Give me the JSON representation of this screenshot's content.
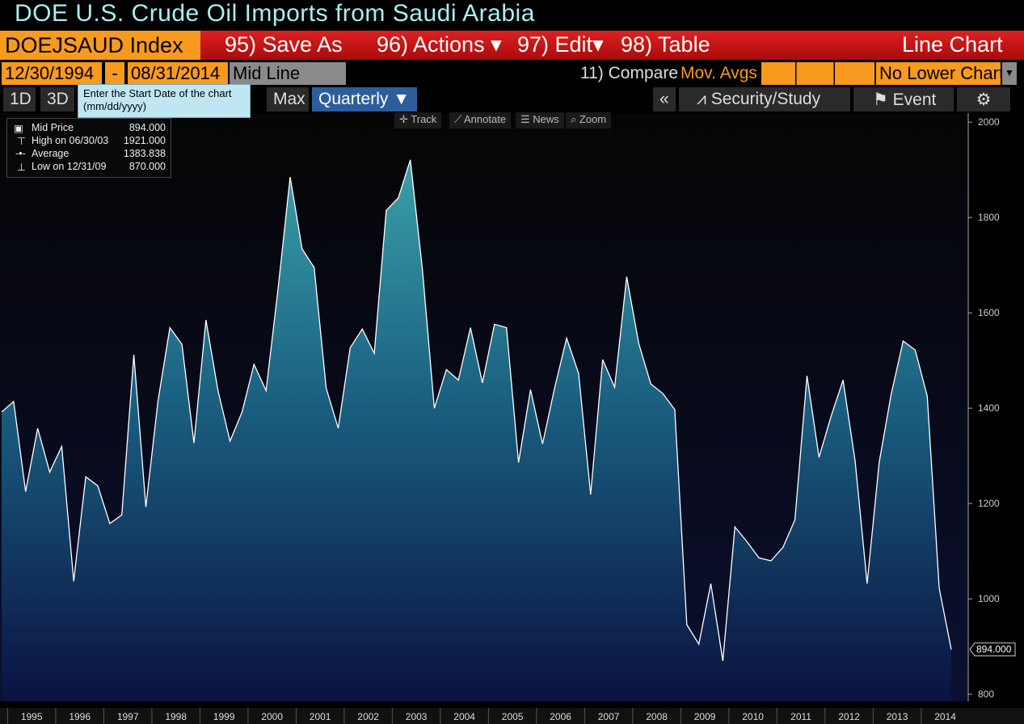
{
  "header": {
    "title": "DOE U.S. Crude Oil Imports from Saudi Arabia"
  },
  "toolbar": {
    "ticker": "DOEJSAUD Index",
    "menu": [
      "95) Save As",
      "96) Actions",
      "97) Edit",
      "98) Table"
    ],
    "chart_type": "Line Chart"
  },
  "controls": {
    "start_date": "12/30/1994",
    "separator": "-",
    "end_date": "08/31/2014",
    "line_mode": "Mid Line",
    "compare": "11) Compare",
    "mov_avgs": "Mov. Avgs",
    "lower_chart": "No Lower Chart"
  },
  "periods": [
    "1D",
    "3D",
    "Max"
  ],
  "frequency": "Quarterly",
  "tooltip": {
    "text": "Enter the Start Date of the chart",
    "hint": "(mm/dd/yyyy)"
  },
  "right_tools": [
    "Security/Study",
    "Event"
  ],
  "chart_tools": [
    "Track",
    "Annotate",
    "News",
    "Zoom"
  ],
  "legend": [
    {
      "value": "894.000"
    },
    {
      "label": "High on 06/30/03",
      "value": "1921.000"
    },
    {
      "label": "Average",
      "value": "1383.838"
    },
    {
      "label": "Low on 12/31/09",
      "value": "870.000"
    }
  ],
  "chart_data": {
    "type": "area",
    "series": [
      {
        "name": "Mid Price",
        "color": "#ffffff",
        "values": [
          1392,
          1414,
          1225,
          1358,
          1266,
          1320,
          1037,
          1256,
          1237,
          1158,
          1176,
          1512,
          1193,
          1414,
          1569,
          1534,
          1327,
          1585,
          1437,
          1331,
          1392,
          1492,
          1437,
          1651,
          1885,
          1734,
          1695,
          1442,
          1358,
          1527,
          1566,
          1515,
          1815,
          1841,
          1921,
          1692,
          1400,
          1481,
          1459,
          1569,
          1453,
          1576,
          1569,
          1286,
          1439,
          1325,
          1442,
          1547,
          1473,
          1219,
          1502,
          1444,
          1676,
          1536,
          1451,
          1431,
          1397,
          946,
          905,
          1032,
          870,
          1151,
          1120,
          1086,
          1080,
          1108,
          1166,
          1468,
          1297,
          1383,
          1459,
          1290,
          1032,
          1286,
          1429,
          1541,
          1522,
          1425,
          1022,
          894
        ]
      }
    ],
    "ylim": [
      785,
      2019
    ],
    "yticks": [
      800,
      1000,
      1200,
      1400,
      1600,
      1800,
      2000
    ],
    "xticks": [
      1995,
      1996,
      1997,
      1998,
      1999,
      2000,
      2001,
      2002,
      2003,
      2004,
      2005,
      2006,
      2007,
      2008,
      2009,
      2010,
      2011,
      2012,
      2013,
      2014
    ]
  }
}
